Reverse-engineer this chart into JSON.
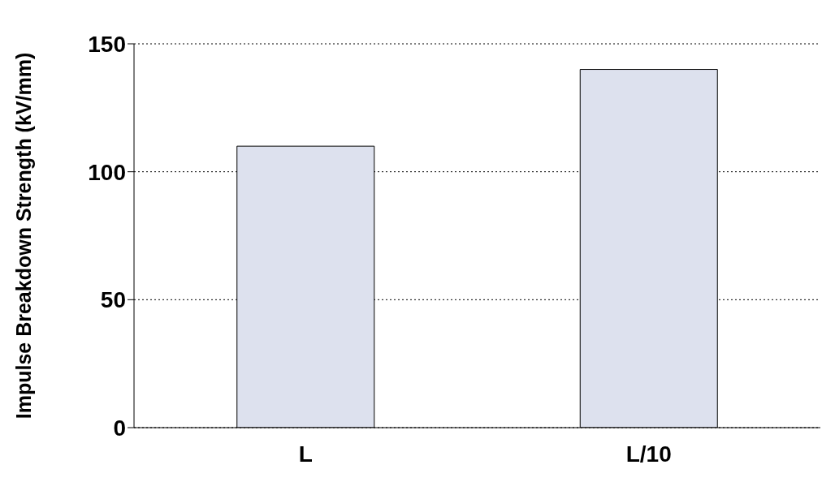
{
  "chart_data": {
    "type": "bar",
    "ylabel": "Impulse Breakdown Strength (kV/mm)",
    "categories": [
      "L",
      "L/10"
    ],
    "values": [
      110,
      140
    ],
    "color": "#dde1ee",
    "ylim": [
      0,
      150
    ],
    "yticks": [
      0,
      50,
      100,
      150
    ],
    "grid": "y"
  }
}
